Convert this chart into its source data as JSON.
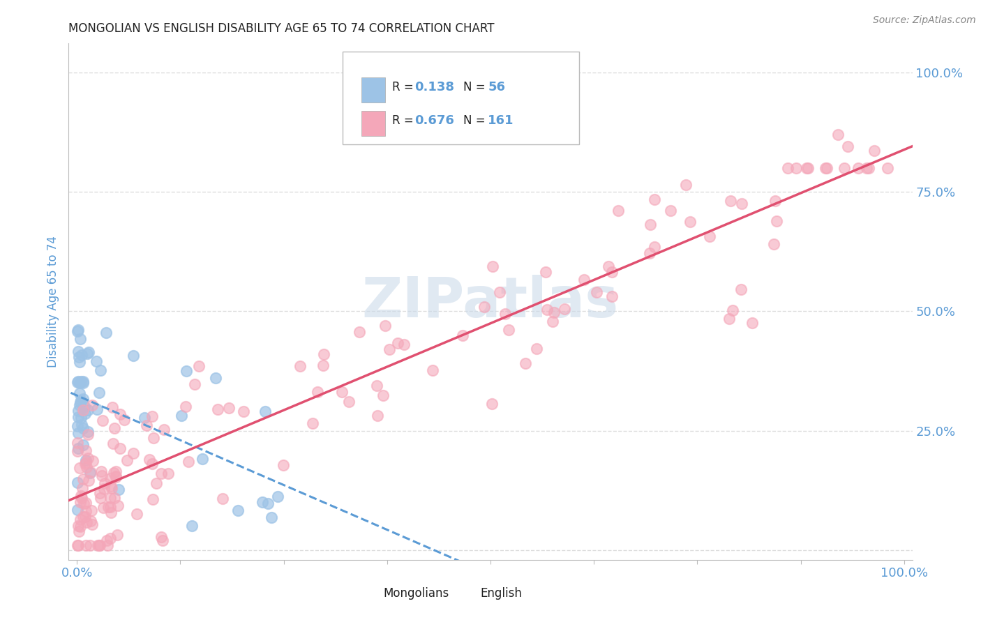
{
  "title": "MONGOLIAN VS ENGLISH DISABILITY AGE 65 TO 74 CORRELATION CHART",
  "source": "Source: ZipAtlas.com",
  "ylabel": "Disability Age 65 to 74",
  "mongolian_R": 0.138,
  "mongolian_N": 56,
  "english_R": 0.676,
  "english_N": 161,
  "xlim": [
    0.0,
    1.0
  ],
  "ylim": [
    0.0,
    1.05
  ],
  "title_fontsize": 12,
  "axis_color": "#5b9bd5",
  "background_color": "#ffffff",
  "mongolian_color": "#9dc3e6",
  "english_color": "#f4a7b9",
  "mongolian_line_color": "#5b9bd5",
  "english_line_color": "#e05070",
  "watermark_color": "#c8d8e8",
  "grid_color": "#dddddd",
  "tick_label_color": "#5b9bd5"
}
